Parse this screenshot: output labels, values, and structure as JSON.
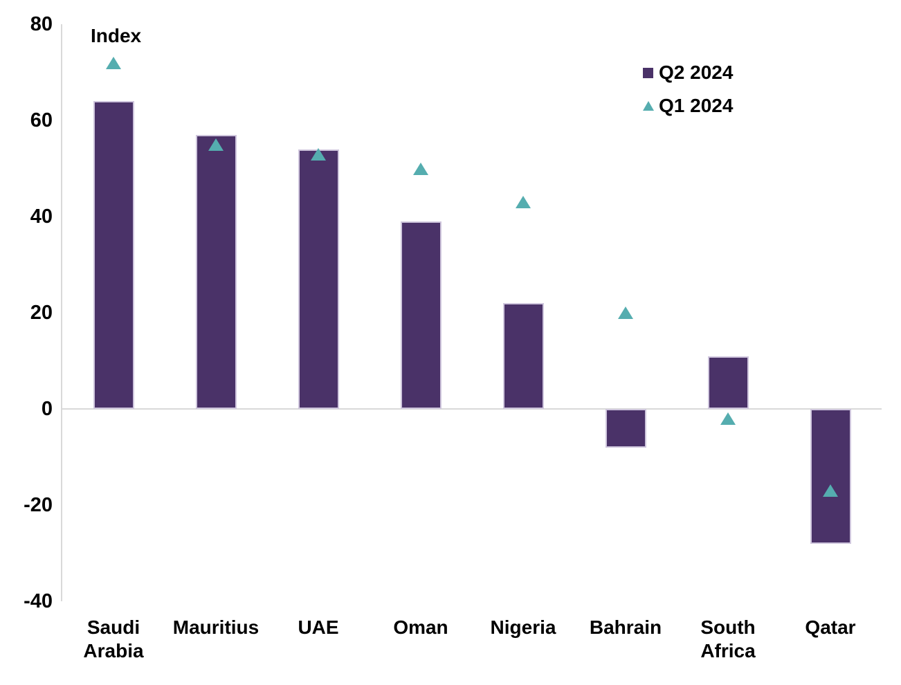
{
  "chart_data": {
    "type": "bar",
    "title": "",
    "ylabel": "Index",
    "categories": [
      "Saudi\nArabia",
      "Mauritius",
      "UAE",
      "Oman",
      "Nigeria",
      "Bahrain",
      "South Africa",
      "Qatar"
    ],
    "series": [
      {
        "name": "Q2 2024",
        "type": "bar",
        "marker": "square",
        "color": "#4A3268",
        "values": [
          64,
          57,
          54,
          39,
          22,
          -8,
          11,
          -28
        ]
      },
      {
        "name": "Q1 2024",
        "type": "scatter",
        "marker": "triangle",
        "color": "#55ADAF",
        "values": [
          72,
          55,
          53,
          50,
          43,
          20,
          -2,
          -17
        ]
      }
    ],
    "ylim": [
      -40,
      80
    ],
    "yticks": [
      80,
      60,
      40,
      20,
      0,
      -20,
      -40
    ],
    "grid": false,
    "legend_position": "top-right",
    "axis_color": "#D9D9D9",
    "text_color": "#000000",
    "background_color": "#FFFFFF"
  }
}
